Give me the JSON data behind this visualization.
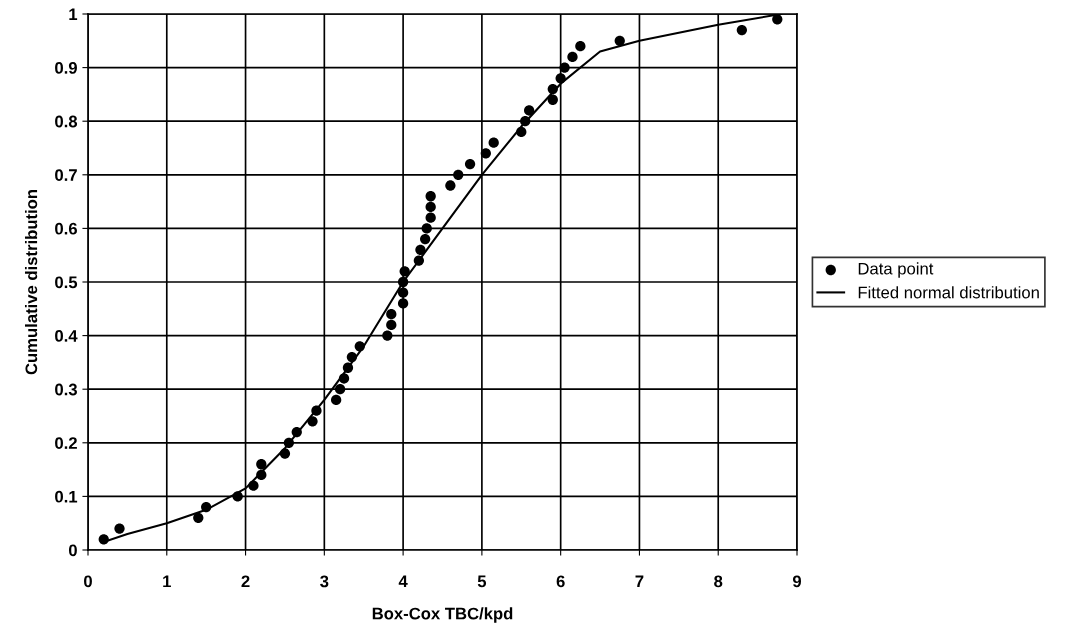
{
  "chart_data": {
    "type": "scatter",
    "xlabel": "Box-Cox TBC/kpd",
    "ylabel": "Cumulative distribution",
    "xlim": [
      0,
      9
    ],
    "ylim": [
      0,
      1
    ],
    "xticks": [
      0,
      1,
      2,
      3,
      4,
      5,
      6,
      7,
      8,
      9
    ],
    "yticks": [
      0,
      0.1,
      0.2,
      0.3,
      0.4,
      0.5,
      0.6,
      0.7,
      0.8,
      0.9,
      1
    ],
    "grid": true,
    "legend": "right",
    "series": [
      {
        "name": "Data point",
        "marker": "circle",
        "color": "#000000",
        "x": [
          0.2,
          0.4,
          1.4,
          1.5,
          1.9,
          2.1,
          2.2,
          2.2,
          2.5,
          2.55,
          2.65,
          2.85,
          2.9,
          3.15,
          3.2,
          3.25,
          3.3,
          3.35,
          3.45,
          3.8,
          3.85,
          3.85,
          4.0,
          4.0,
          4.0,
          4.02,
          4.2,
          4.22,
          4.28,
          4.3,
          4.35,
          4.35,
          4.35,
          4.6,
          4.7,
          4.85,
          5.05,
          5.15,
          5.5,
          5.55,
          5.6,
          5.9,
          5.9,
          6.0,
          6.05,
          6.15,
          6.25,
          6.75,
          8.3,
          8.75
        ],
        "values": [
          0.02,
          0.04,
          0.06,
          0.08,
          0.1,
          0.12,
          0.14,
          0.16,
          0.18,
          0.2,
          0.22,
          0.24,
          0.26,
          0.28,
          0.3,
          0.32,
          0.34,
          0.36,
          0.38,
          0.4,
          0.42,
          0.44,
          0.46,
          0.48,
          0.5,
          0.52,
          0.54,
          0.56,
          0.58,
          0.6,
          0.62,
          0.64,
          0.66,
          0.68,
          0.7,
          0.72,
          0.74,
          0.76,
          0.78,
          0.8,
          0.82,
          0.84,
          0.86,
          0.88,
          0.9,
          0.92,
          0.94,
          0.95,
          0.97,
          0.99
        ]
      },
      {
        "name": "Fitted normal distribution",
        "type": "line",
        "marker": "none",
        "line_style": "solid",
        "color": "#000000",
        "x": [
          0.2,
          0.5,
          1,
          1.5,
          2,
          2.5,
          3,
          3.5,
          4,
          4.5,
          5,
          5.5,
          6,
          6.5,
          7,
          8,
          8.8
        ],
        "values": [
          0.015,
          0.03,
          0.05,
          0.075,
          0.115,
          0.19,
          0.28,
          0.38,
          0.5,
          0.6,
          0.7,
          0.79,
          0.87,
          0.93,
          0.95,
          0.98,
          1.0
        ]
      }
    ]
  }
}
